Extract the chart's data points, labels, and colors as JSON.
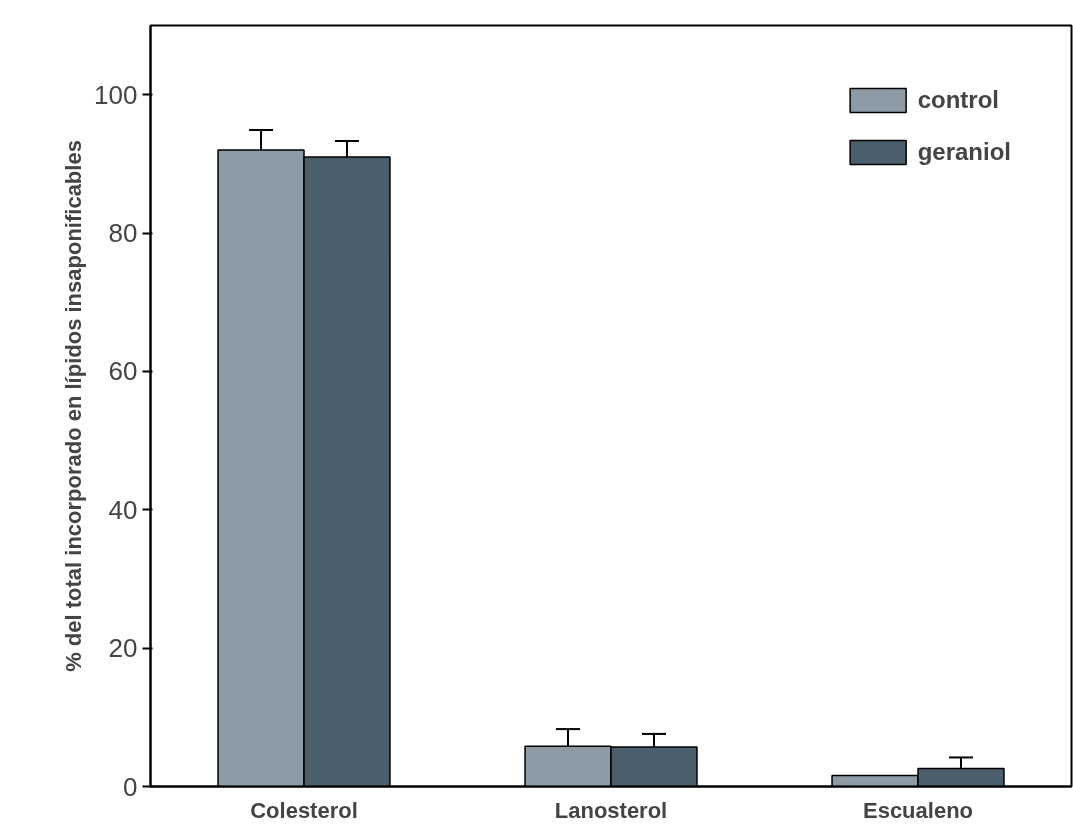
{
  "chart_data": {
    "type": "bar",
    "ylabel": "% del total incorporado en lípidos insaponificables",
    "categories": [
      "Colesterol",
      "Lanosterol",
      "Escualeno"
    ],
    "series": [
      {
        "name": "control",
        "color": "#8c9ba6",
        "values": [
          92.0,
          5.8,
          1.6
        ],
        "errors": [
          [
            92.0,
            94.9
          ],
          [
            5.8,
            8.3
          ],
          null
        ]
      },
      {
        "name": "geraniol",
        "color": "#4b5e6c",
        "values": [
          91.0,
          5.7,
          2.6
        ],
        "errors": [
          [
            91.0,
            93.3
          ],
          [
            5.7,
            7.6
          ],
          [
            2.6,
            4.2
          ]
        ]
      }
    ],
    "ylim": [
      0,
      110
    ],
    "yticks": [
      0,
      20,
      40,
      60,
      80,
      100
    ],
    "grid": false,
    "legend": "top right"
  }
}
